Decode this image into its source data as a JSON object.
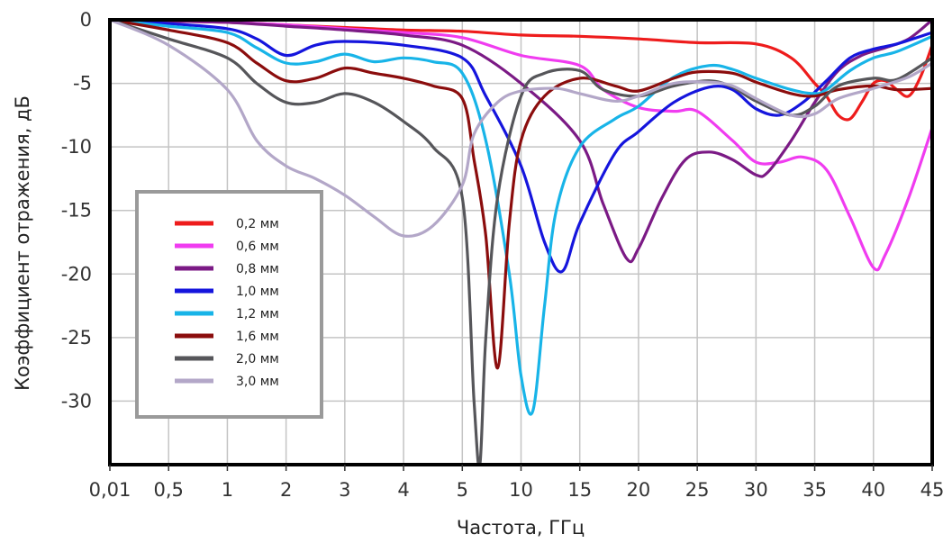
{
  "chart_data": {
    "type": "line",
    "xlabel": "Частота, ГГц",
    "ylabel": "Коэффициент отражения, дБ",
    "x_ticks": [
      "0,01",
      "0,5",
      "1",
      "2",
      "3",
      "4",
      "5",
      "10",
      "15",
      "20",
      "25",
      "30",
      "35",
      "40",
      "45"
    ],
    "y_ticks": [
      0,
      -5,
      -10,
      -15,
      -20,
      -25,
      -30
    ],
    "ylim": [
      -35,
      0
    ],
    "grid": true,
    "legend_position": "center-left",
    "series": [
      {
        "name": "0,2 мм",
        "color": "#ee1c1c",
        "points": [
          [
            0.01,
            0
          ],
          [
            0.5,
            -0.1
          ],
          [
            1,
            -0.2
          ],
          [
            2,
            -0.4
          ],
          [
            3,
            -0.6
          ],
          [
            4,
            -0.8
          ],
          [
            5,
            -0.9
          ],
          [
            10,
            -1.2
          ],
          [
            15,
            -1.3
          ],
          [
            20,
            -1.5
          ],
          [
            25,
            -1.8
          ],
          [
            30,
            -1.9
          ],
          [
            33,
            -3.0
          ],
          [
            35,
            -5.0
          ],
          [
            36,
            -6.0
          ],
          [
            37,
            -7.5
          ],
          [
            38,
            -7.8
          ],
          [
            39,
            -6.5
          ],
          [
            40,
            -5.0
          ],
          [
            41,
            -4.8
          ],
          [
            42,
            -5.5
          ],
          [
            43,
            -6.0
          ],
          [
            44,
            -4.5
          ],
          [
            45,
            -2.0
          ]
        ]
      },
      {
        "name": "0,6 мм",
        "color": "#f03cf0",
        "points": [
          [
            0.01,
            0
          ],
          [
            0.5,
            -0.1
          ],
          [
            1,
            -0.2
          ],
          [
            2,
            -0.4
          ],
          [
            3,
            -0.7
          ],
          [
            4,
            -1.0
          ],
          [
            5,
            -1.4
          ],
          [
            10,
            -2.8
          ],
          [
            15,
            -3.6
          ],
          [
            17,
            -5.5
          ],
          [
            20,
            -6.9
          ],
          [
            23,
            -7.2
          ],
          [
            25,
            -7.2
          ],
          [
            28,
            -9.5
          ],
          [
            30,
            -11.2
          ],
          [
            32,
            -11.2
          ],
          [
            34,
            -10.8
          ],
          [
            36,
            -11.8
          ],
          [
            38,
            -15.5
          ],
          [
            40,
            -19.5
          ],
          [
            41,
            -18.5
          ],
          [
            43,
            -14.0
          ],
          [
            45,
            -8.5
          ]
        ]
      },
      {
        "name": "0,8 мм",
        "color": "#7b1a85",
        "points": [
          [
            0.01,
            0
          ],
          [
            0.5,
            -0.1
          ],
          [
            1,
            -0.2
          ],
          [
            2,
            -0.5
          ],
          [
            3,
            -0.8
          ],
          [
            4,
            -1.2
          ],
          [
            5,
            -2.0
          ],
          [
            10,
            -5.0
          ],
          [
            15,
            -9.5
          ],
          [
            17,
            -14.5
          ],
          [
            19,
            -18.8
          ],
          [
            20,
            -18.0
          ],
          [
            22,
            -14.0
          ],
          [
            24,
            -11.0
          ],
          [
            26,
            -10.4
          ],
          [
            28,
            -11.0
          ],
          [
            30,
            -12.2
          ],
          [
            31,
            -12.0
          ],
          [
            33,
            -9.5
          ],
          [
            35,
            -6.5
          ],
          [
            37,
            -4.0
          ],
          [
            39,
            -2.8
          ],
          [
            41,
            -2.2
          ],
          [
            43,
            -1.5
          ],
          [
            45,
            0
          ]
        ]
      },
      {
        "name": "1,0 мм",
        "color": "#1515dd",
        "points": [
          [
            0.01,
            0
          ],
          [
            0.5,
            -0.3
          ],
          [
            1,
            -0.7
          ],
          [
            1.5,
            -1.5
          ],
          [
            2,
            -2.8
          ],
          [
            2.5,
            -2.0
          ],
          [
            3,
            -1.7
          ],
          [
            4,
            -2.0
          ],
          [
            5,
            -3.0
          ],
          [
            7,
            -6.0
          ],
          [
            10,
            -11.5
          ],
          [
            12,
            -17.5
          ],
          [
            13.5,
            -19.8
          ],
          [
            15,
            -16.0
          ],
          [
            18,
            -10.5
          ],
          [
            20,
            -8.8
          ],
          [
            23,
            -6.5
          ],
          [
            26,
            -5.3
          ],
          [
            28,
            -5.5
          ],
          [
            30,
            -7.0
          ],
          [
            32,
            -7.5
          ],
          [
            34,
            -6.5
          ],
          [
            36,
            -4.8
          ],
          [
            38,
            -3.0
          ],
          [
            40,
            -2.3
          ],
          [
            42,
            -1.9
          ],
          [
            45,
            -1.0
          ]
        ]
      },
      {
        "name": "1,2 мм",
        "color": "#18b4e8",
        "points": [
          [
            0.01,
            0
          ],
          [
            0.5,
            -0.5
          ],
          [
            1,
            -1.0
          ],
          [
            1.5,
            -2.2
          ],
          [
            2,
            -3.4
          ],
          [
            2.5,
            -3.3
          ],
          [
            3,
            -2.7
          ],
          [
            3.5,
            -3.3
          ],
          [
            4,
            -3.0
          ],
          [
            4.5,
            -3.3
          ],
          [
            5,
            -4.2
          ],
          [
            7,
            -9.5
          ],
          [
            9,
            -20.0
          ],
          [
            10,
            -28.0
          ],
          [
            11,
            -30.8
          ],
          [
            12,
            -22.5
          ],
          [
            13,
            -15.0
          ],
          [
            15,
            -10.0
          ],
          [
            18,
            -7.8
          ],
          [
            20,
            -6.8
          ],
          [
            23,
            -4.5
          ],
          [
            26,
            -3.6
          ],
          [
            28,
            -3.9
          ],
          [
            30,
            -4.6
          ],
          [
            33,
            -5.5
          ],
          [
            35,
            -5.8
          ],
          [
            36,
            -5.5
          ],
          [
            38,
            -4.0
          ],
          [
            40,
            -3.0
          ],
          [
            42,
            -2.5
          ],
          [
            45,
            -1.3
          ]
        ]
      },
      {
        "name": "1,6 мм",
        "color": "#8b0d0d",
        "points": [
          [
            0.01,
            0
          ],
          [
            0.5,
            -0.8
          ],
          [
            1,
            -1.8
          ],
          [
            1.5,
            -3.4
          ],
          [
            2,
            -4.8
          ],
          [
            2.5,
            -4.6
          ],
          [
            3,
            -3.8
          ],
          [
            3.5,
            -4.2
          ],
          [
            4,
            -4.6
          ],
          [
            4.5,
            -5.2
          ],
          [
            5,
            -6.2
          ],
          [
            6,
            -11.0
          ],
          [
            7,
            -17.0
          ],
          [
            8,
            -27.4
          ],
          [
            9,
            -16.0
          ],
          [
            10,
            -9.5
          ],
          [
            12,
            -6.0
          ],
          [
            15,
            -4.6
          ],
          [
            18,
            -5.2
          ],
          [
            20,
            -5.6
          ],
          [
            23,
            -4.6
          ],
          [
            25,
            -4.1
          ],
          [
            28,
            -4.2
          ],
          [
            30,
            -4.9
          ],
          [
            33,
            -5.8
          ],
          [
            35,
            -6.0
          ],
          [
            37,
            -5.5
          ],
          [
            40,
            -5.2
          ],
          [
            42,
            -5.5
          ],
          [
            45,
            -5.4
          ]
        ]
      },
      {
        "name": "2,0 мм",
        "color": "#56565a",
        "points": [
          [
            0.01,
            0
          ],
          [
            0.5,
            -1.5
          ],
          [
            1,
            -3.0
          ],
          [
            1.5,
            -5.0
          ],
          [
            2,
            -6.5
          ],
          [
            2.5,
            -6.5
          ],
          [
            3,
            -5.8
          ],
          [
            3.5,
            -6.5
          ],
          [
            4,
            -8.0
          ],
          [
            4.5,
            -10.0
          ],
          [
            5,
            -14.0
          ],
          [
            6,
            -30.0
          ],
          [
            6.5,
            -35.0
          ],
          [
            7,
            -25.0
          ],
          [
            8,
            -14.0
          ],
          [
            10,
            -6.0
          ],
          [
            12,
            -4.2
          ],
          [
            15,
            -4.0
          ],
          [
            17,
            -5.5
          ],
          [
            20,
            -6.0
          ],
          [
            23,
            -5.2
          ],
          [
            26,
            -4.8
          ],
          [
            28,
            -5.3
          ],
          [
            30,
            -6.4
          ],
          [
            33,
            -7.5
          ],
          [
            35,
            -6.8
          ],
          [
            37,
            -5.2
          ],
          [
            40,
            -4.6
          ],
          [
            42,
            -4.7
          ],
          [
            45,
            -3.0
          ]
        ]
      },
      {
        "name": "3,0 мм",
        "color": "#b3a7c8",
        "points": [
          [
            0.01,
            0
          ],
          [
            0.5,
            -2.0
          ],
          [
            1,
            -5.5
          ],
          [
            1.5,
            -9.5
          ],
          [
            2,
            -11.5
          ],
          [
            2.5,
            -12.5
          ],
          [
            3,
            -13.8
          ],
          [
            3.5,
            -15.5
          ],
          [
            4,
            -17.0
          ],
          [
            4.5,
            -16.2
          ],
          [
            5,
            -13.0
          ],
          [
            6,
            -9.0
          ],
          [
            8,
            -6.5
          ],
          [
            10,
            -5.6
          ],
          [
            13,
            -5.4
          ],
          [
            15,
            -5.8
          ],
          [
            18,
            -6.4
          ],
          [
            20,
            -6.0
          ],
          [
            23,
            -5.0
          ],
          [
            26,
            -4.9
          ],
          [
            28,
            -5.2
          ],
          [
            30,
            -6.2
          ],
          [
            33,
            -7.5
          ],
          [
            35,
            -7.4
          ],
          [
            37,
            -6.2
          ],
          [
            40,
            -5.4
          ],
          [
            43,
            -4.5
          ],
          [
            45,
            -3.4
          ]
        ]
      }
    ]
  }
}
